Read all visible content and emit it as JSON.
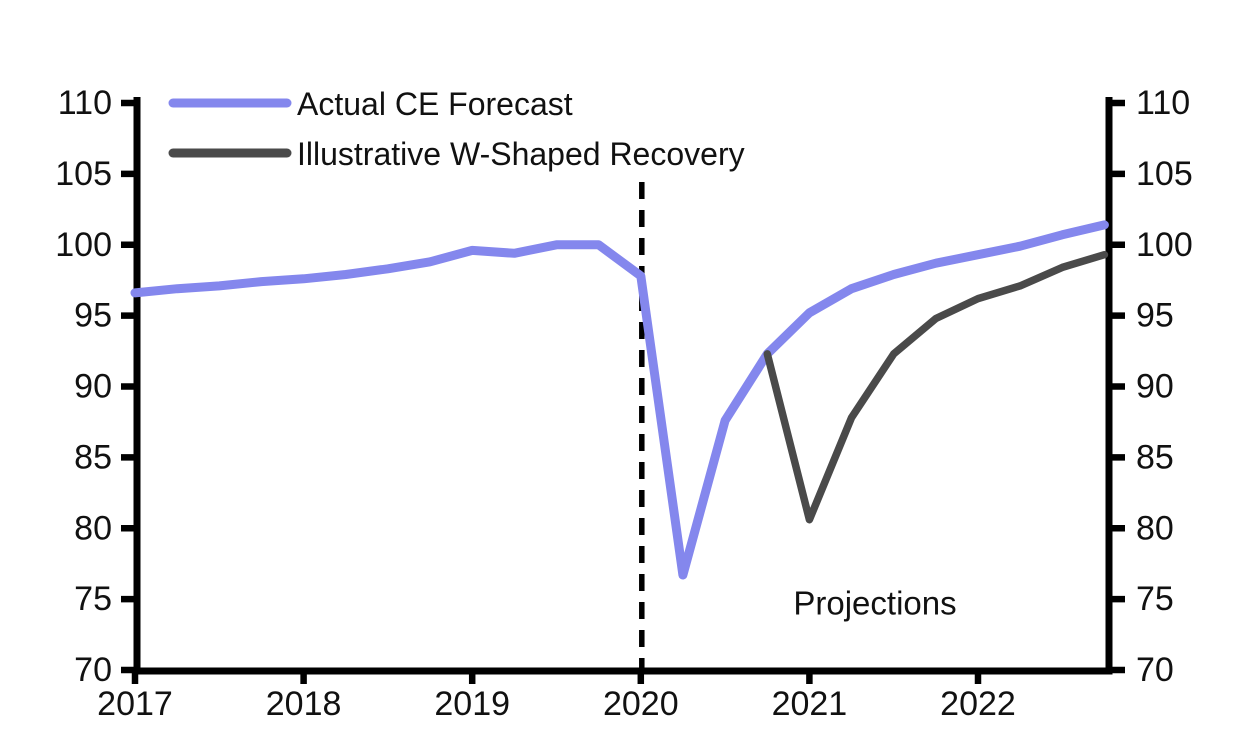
{
  "chart_data": {
    "type": "line",
    "title": "",
    "xlabel": "",
    "ylabel": "",
    "xlim": [
      2017,
      2022.79
    ],
    "ylim": [
      70,
      110
    ],
    "grid": "off",
    "y_ticks": [
      70,
      75,
      80,
      85,
      90,
      95,
      100,
      105,
      110
    ],
    "y_axis_sides": "both",
    "x_tick_years": [
      2017,
      2018,
      2019,
      2020,
      2021,
      2022
    ],
    "x_tick_labels": [
      "2017",
      "2018",
      "2019",
      "2020",
      "2021",
      "2022"
    ],
    "axis_color": "#000000",
    "divider_line": {
      "x": 2020,
      "style": "dashed",
      "color": "#000000"
    },
    "annotation": {
      "text": "Projections",
      "x": 2021.39,
      "y": 74.7
    },
    "legend": {
      "position": "top-left"
    },
    "series": [
      {
        "name": "Actual CE Forecast",
        "color": "#8487ed",
        "x": [
          2017.0,
          2017.25,
          2017.5,
          2017.75,
          2018.0,
          2018.25,
          2018.5,
          2018.75,
          2019.0,
          2019.25,
          2019.5,
          2019.75,
          2020.0,
          2020.25,
          2020.5,
          2020.75,
          2021.0,
          2021.25,
          2021.5,
          2021.75,
          2022.0,
          2022.25,
          2022.5,
          2022.75
        ],
        "values": [
          96.6,
          96.9,
          97.1,
          97.4,
          97.6,
          97.9,
          98.3,
          98.8,
          99.6,
          99.4,
          100.0,
          100.0,
          97.8,
          76.7,
          87.6,
          92.3,
          95.2,
          96.9,
          97.9,
          98.7,
          99.3,
          99.9,
          100.7,
          101.4
        ]
      },
      {
        "name": "Illustrative W-Shaped Recovery",
        "color": "#4a4a4a",
        "x": [
          2020.75,
          2021.0,
          2021.25,
          2021.5,
          2021.75,
          2022.0,
          2022.25,
          2022.5,
          2022.75
        ],
        "values": [
          92.3,
          80.6,
          87.8,
          92.3,
          94.8,
          96.2,
          97.1,
          98.4,
          99.3
        ]
      }
    ]
  }
}
